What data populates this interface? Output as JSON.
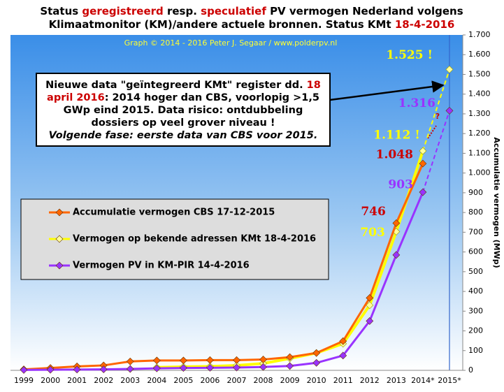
{
  "chart_data": {
    "type": "line",
    "title": [
      [
        {
          "text": "Status ",
          "color": "#000000"
        },
        {
          "text": "geregistreerd",
          "color": "#cc0000"
        },
        {
          "text": " resp. ",
          "color": "#000000"
        },
        {
          "text": "speculatief",
          "color": "#cc0000"
        },
        {
          "text": " PV vermogen Nederland volgens",
          "color": "#000000"
        }
      ],
      [
        {
          "text": "Klimaatmonitor (KM)/andere actuele bronnen. Status KMt ",
          "color": "#000000"
        },
        {
          "text": "18-4-2016",
          "color": "#cc0000"
        }
      ]
    ],
    "credit": "Graph © 2014 - 2016 Peter J. Segaar / www.polderpv.nl",
    "y_label": "Accumulatie vermogen (MWp)",
    "annotation": [
      [
        {
          "text": "Nieuwe data \"geïntegreerd KMt\" register dd. ",
          "color": "#000000"
        },
        {
          "text": "18",
          "color": "#cc0000"
        }
      ],
      [
        {
          "text": "april 2016",
          "color": "#cc0000"
        },
        {
          "text": ": 2014 hoger dan CBS, voorlopig >1,5",
          "color": "#000000"
        }
      ],
      [
        {
          "text": "GWp eind 2015. Data risico: ontdubbeling",
          "color": "#000000"
        }
      ],
      [
        {
          "text": "dossiers op veel grover niveau !",
          "color": "#000000"
        }
      ],
      [
        {
          "text": "Volgende fase: eerste data van CBS voor 2015.",
          "color": "#000000",
          "italic": true
        }
      ]
    ],
    "question_mark": "?",
    "categories": [
      "1999",
      "2000",
      "2001",
      "2002",
      "2003",
      "2004",
      "2005",
      "2006",
      "2007",
      "2008",
      "2009",
      "2010",
      "2011",
      "2012",
      "2013",
      "2014*",
      "2015*"
    ],
    "series": [
      {
        "name": "Accumulatie vermogen CBS 17-12-2015",
        "color": "#ff6600",
        "marker_color": "#ff6600",
        "label_color": "#cc0000",
        "projected": false,
        "values": [
          5,
          12,
          20,
          25,
          45,
          50,
          50,
          52,
          52,
          55,
          67,
          88,
          148,
          367,
          746,
          1048,
          null
        ],
        "value_labels": [
          null,
          null,
          null,
          null,
          null,
          null,
          null,
          null,
          null,
          null,
          null,
          null,
          null,
          null,
          "746",
          "1.048",
          null
        ]
      },
      {
        "name": "Vermogen op bekende adressen KMt 18-4-2016",
        "color": "#ffff00",
        "marker_color": "#ffff99",
        "label_color": "#ffff00",
        "projected": true,
        "values": [
          null,
          null,
          null,
          null,
          null,
          15,
          18,
          20,
          25,
          35,
          60,
          88,
          135,
          330,
          703,
          1112,
          1525
        ],
        "value_labels": [
          null,
          null,
          null,
          null,
          null,
          null,
          null,
          null,
          null,
          null,
          null,
          null,
          null,
          null,
          "703",
          "1.112 !",
          "1.525 !"
        ]
      },
      {
        "name": "Vermogen PV in KM-PIR 14-4-2016",
        "color": "#9933ff",
        "marker_color": "#9933ff",
        "label_color": "#9933ff",
        "projected": true,
        "values": [
          2,
          3,
          4,
          5,
          7,
          10,
          12,
          13,
          14,
          17,
          22,
          38,
          75,
          250,
          585,
          903,
          1316
        ],
        "value_labels": [
          null,
          null,
          null,
          null,
          null,
          null,
          null,
          null,
          null,
          null,
          null,
          null,
          null,
          null,
          null,
          "903",
          "1.316"
        ]
      }
    ],
    "ylim": [
      0,
      1700
    ],
    "yticks": [
      0,
      100,
      200,
      300,
      400,
      500,
      600,
      700,
      800,
      900,
      {
        "value": 1000,
        "label": "1.000"
      },
      {
        "value": 1100,
        "label": "1.100"
      },
      {
        "value": 1200,
        "label": "1.200"
      },
      {
        "value": 1300,
        "label": "1.300"
      },
      {
        "value": 1400,
        "label": "1.400"
      },
      {
        "value": 1500,
        "label": "1.500"
      },
      {
        "value": 1600,
        "label": "1.600"
      },
      {
        "value": 1700,
        "label": "1.700"
      }
    ],
    "grid": false,
    "legend": "left"
  }
}
